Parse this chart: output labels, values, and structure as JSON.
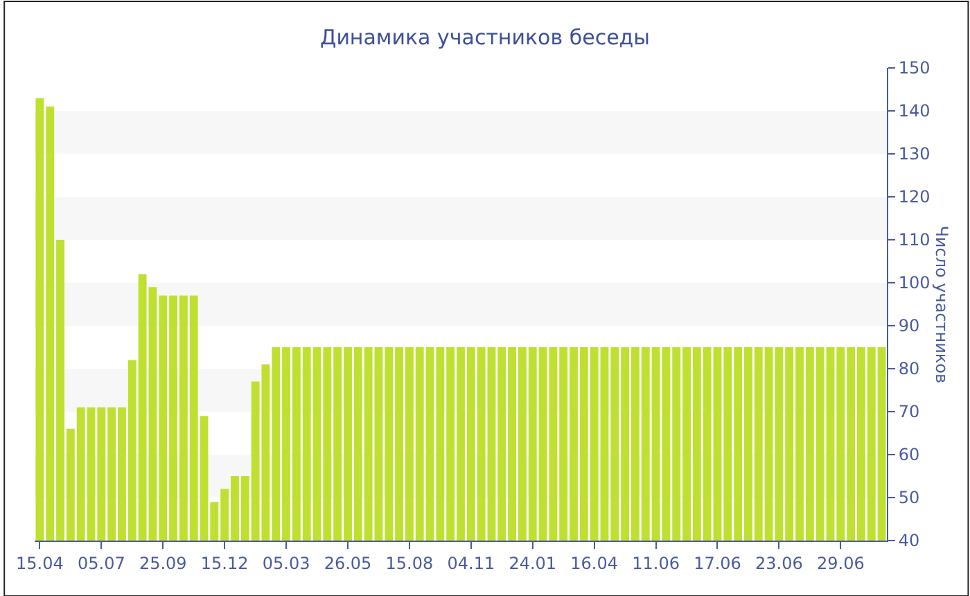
{
  "chart_data": {
    "type": "bar",
    "title": "Динамика участников беседы",
    "ylabel": "Число участников",
    "categories": [
      "15.04",
      null,
      null,
      null,
      null,
      null,
      "05.07",
      null,
      null,
      null,
      null,
      null,
      "25.09",
      null,
      null,
      null,
      null,
      null,
      "15.12",
      null,
      null,
      null,
      null,
      null,
      "05.03",
      null,
      null,
      null,
      null,
      null,
      "26.05",
      null,
      null,
      null,
      null,
      null,
      "15.08",
      null,
      null,
      null,
      null,
      null,
      "04.11",
      null,
      null,
      null,
      null,
      null,
      "24.01",
      null,
      null,
      null,
      null,
      null,
      "16.04",
      null,
      null,
      null,
      null,
      null,
      "11.06",
      null,
      null,
      null,
      null,
      null,
      "17.06",
      null,
      null,
      null,
      null,
      null,
      "23.06",
      null,
      null,
      null,
      null,
      null,
      "29.06",
      null,
      null,
      null,
      null
    ],
    "values": [
      143,
      141,
      110,
      66,
      71,
      71,
      71,
      71,
      71,
      82,
      102,
      99,
      97,
      97,
      97,
      97,
      69,
      49,
      52,
      55,
      55,
      77,
      81,
      85,
      85,
      85,
      85,
      85,
      85,
      85,
      85,
      85,
      85,
      85,
      85,
      85,
      85,
      85,
      85,
      85,
      85,
      85,
      85,
      85,
      85,
      85,
      85,
      85,
      85,
      85,
      85,
      85,
      85,
      85,
      85,
      85,
      85,
      85,
      85,
      85,
      85,
      85,
      85,
      85,
      85,
      85,
      85,
      85,
      85,
      85,
      85,
      85,
      85,
      85,
      85,
      85,
      85,
      85,
      85,
      85,
      85,
      85,
      85
    ],
    "color": "#bfe030",
    "ylim": [
      40,
      150
    ],
    "yticks": [
      40,
      50,
      60,
      70,
      80,
      90,
      100,
      110,
      120,
      130,
      140,
      150
    ],
    "bands": [
      {
        "axis": "y",
        "from": 50,
        "to": 60,
        "color": "#f7f7f7"
      },
      {
        "axis": "y",
        "from": 70,
        "to": 80,
        "color": "#f7f7f7"
      },
      {
        "axis": "y",
        "from": 90,
        "to": 100,
        "color": "#f7f7f7"
      },
      {
        "axis": "y",
        "from": 110,
        "to": 120,
        "color": "#f7f7f7"
      },
      {
        "axis": "y",
        "from": 130,
        "to": 140,
        "color": "#f7f7f7"
      }
    ],
    "grid": false
  }
}
